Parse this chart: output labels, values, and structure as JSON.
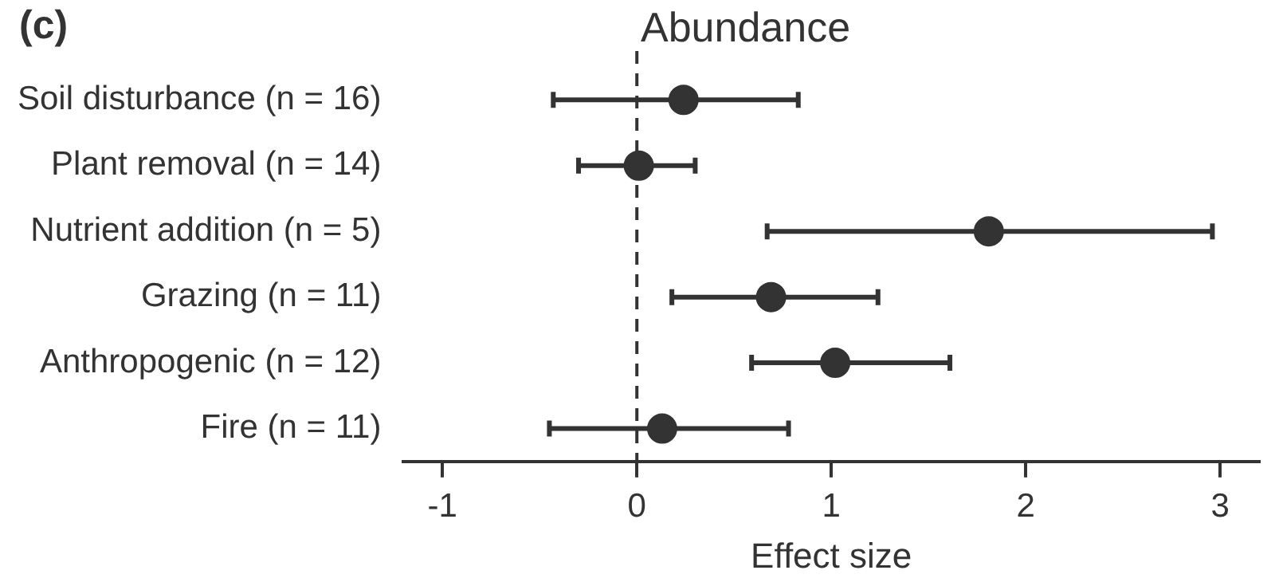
{
  "chart_data": {
    "type": "scatter",
    "orientation": "horizontal",
    "title": "Abundance",
    "xlabel": "Effect size",
    "categories": [
      "Soil disturbance (n = 16)",
      "Plant removal (n = 14)",
      "Nutrient addition (n = 5)",
      "Grazing (n = 11)",
      "Anthropogenic (n = 12)",
      "Fire (n = 11)"
    ],
    "values": [
      0.24,
      0.01,
      1.81,
      0.69,
      1.02,
      0.13
    ],
    "errors": [
      [
        -0.43,
        0.83
      ],
      [
        -0.3,
        0.3
      ],
      [
        0.67,
        2.96
      ],
      [
        0.18,
        1.24
      ],
      [
        0.59,
        1.61
      ],
      [
        -0.45,
        0.78
      ]
    ],
    "color": "#333333",
    "marker": "circle",
    "xlim": [
      -1.2,
      3.2
    ],
    "xticks": [
      -1,
      0,
      1,
      2,
      3
    ],
    "ref_lines": [
      {
        "axis": "x",
        "value": 0,
        "line_style": "dashed",
        "color": "#333333"
      }
    ],
    "annotations": [
      "(c)"
    ]
  }
}
